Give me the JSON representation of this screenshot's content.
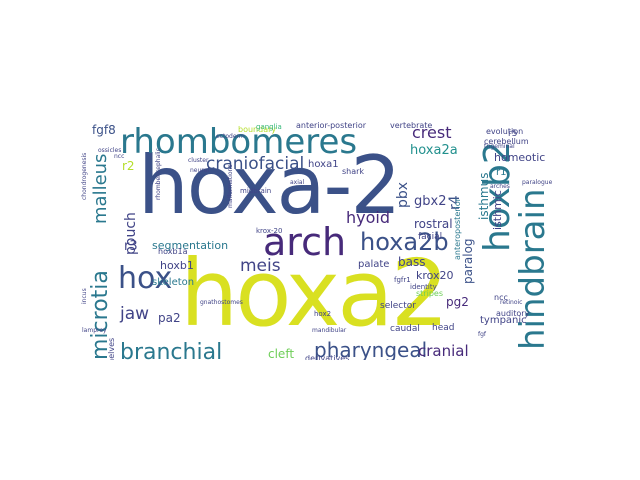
{
  "palette": {
    "dark_blue": "#3b5188",
    "purple": "#472a7a",
    "teal": "#2a788e",
    "teal2": "#21908d",
    "green": "#35b779",
    "light_green": "#6ece58",
    "yellow_green": "#b5de2b",
    "yellow": "#d9e021",
    "indigo": "#414487"
  },
  "words": [
    {
      "text": "hoxa2"
    },
    {
      "text": "hoxa-2"
    },
    {
      "text": "rhombomeres"
    },
    {
      "text": "hoxb2"
    },
    {
      "text": "hindbrain"
    },
    {
      "text": "arch"
    },
    {
      "text": "hox"
    },
    {
      "text": "branchial"
    },
    {
      "text": "hoxa2b"
    },
    {
      "text": "microtia"
    },
    {
      "text": "pharyngeal"
    },
    {
      "text": "craniofacial"
    },
    {
      "text": "crest"
    },
    {
      "text": "malleus"
    },
    {
      "text": "jaw"
    },
    {
      "text": "hyoid"
    },
    {
      "text": "cranial"
    },
    {
      "text": "meis"
    },
    {
      "text": "segmentation"
    },
    {
      "text": "fgf8"
    },
    {
      "text": "paralog"
    },
    {
      "text": "isthmus"
    },
    {
      "text": "hoxa2a"
    },
    {
      "text": "gbx2"
    },
    {
      "text": "pouch"
    },
    {
      "text": "r4"
    },
    {
      "text": "pbx"
    },
    {
      "text": "hoxa1"
    },
    {
      "text": "r2"
    },
    {
      "text": "r3"
    },
    {
      "text": "hoxb1"
    },
    {
      "text": "pa2"
    },
    {
      "text": "skeleton"
    },
    {
      "text": "cleft"
    },
    {
      "text": "rostral"
    },
    {
      "text": "homeotic"
    },
    {
      "text": "isthmic"
    },
    {
      "text": "krox20"
    },
    {
      "text": "pg2"
    },
    {
      "text": "bass"
    },
    {
      "text": "palate"
    },
    {
      "text": "r1"
    },
    {
      "text": "tympanic"
    },
    {
      "text": "selector"
    },
    {
      "text": "head"
    },
    {
      "text": "caudal"
    },
    {
      "text": "facial"
    },
    {
      "text": "evolution"
    },
    {
      "text": "cerebellum"
    },
    {
      "text": "vertebrate"
    },
    {
      "text": "anterior-posterior"
    },
    {
      "text": "boundary"
    },
    {
      "text": "territories"
    },
    {
      "text": "duplication"
    },
    {
      "text": "middle"
    },
    {
      "text": "derivatives"
    },
    {
      "text": "shark"
    },
    {
      "text": "ncc"
    },
    {
      "text": "auditory"
    },
    {
      "text": "stripes"
    },
    {
      "text": "anteroposterior"
    },
    {
      "text": "r5"
    },
    {
      "text": "ear"
    },
    {
      "text": "krox-20"
    },
    {
      "text": "midbrain"
    },
    {
      "text": "shelves"
    },
    {
      "text": "hoxb1a"
    },
    {
      "text": "cartilage"
    },
    {
      "text": "fgfr1"
    },
    {
      "text": "identity"
    },
    {
      "text": "hox2"
    },
    {
      "text": "ganglia"
    },
    {
      "text": "trigeminal"
    },
    {
      "text": "retinoic"
    },
    {
      "text": "chick"
    },
    {
      "text": "cluster"
    },
    {
      "text": "neural"
    },
    {
      "text": "mandibular"
    },
    {
      "text": "incus"
    },
    {
      "text": "fgf"
    },
    {
      "text": "rhombencephalic"
    },
    {
      "text": "chondrogenesis"
    },
    {
      "text": "gnathostomes"
    },
    {
      "text": "malformations"
    },
    {
      "text": "morphogenesis"
    },
    {
      "text": "metameric"
    },
    {
      "text": "lamprey"
    },
    {
      "text": "ncc"
    },
    {
      "text": "ectoderm"
    },
    {
      "text": "paralogue"
    },
    {
      "text": "model"
    },
    {
      "text": "axial"
    },
    {
      "text": "colinear"
    },
    {
      "text": "temporal"
    },
    {
      "text": "ossicles"
    },
    {
      "text": "zebrafish"
    },
    {
      "text": "vertebrate"
    },
    {
      "text": "arches"
    },
    {
      "text": "otic"
    }
  ]
}
